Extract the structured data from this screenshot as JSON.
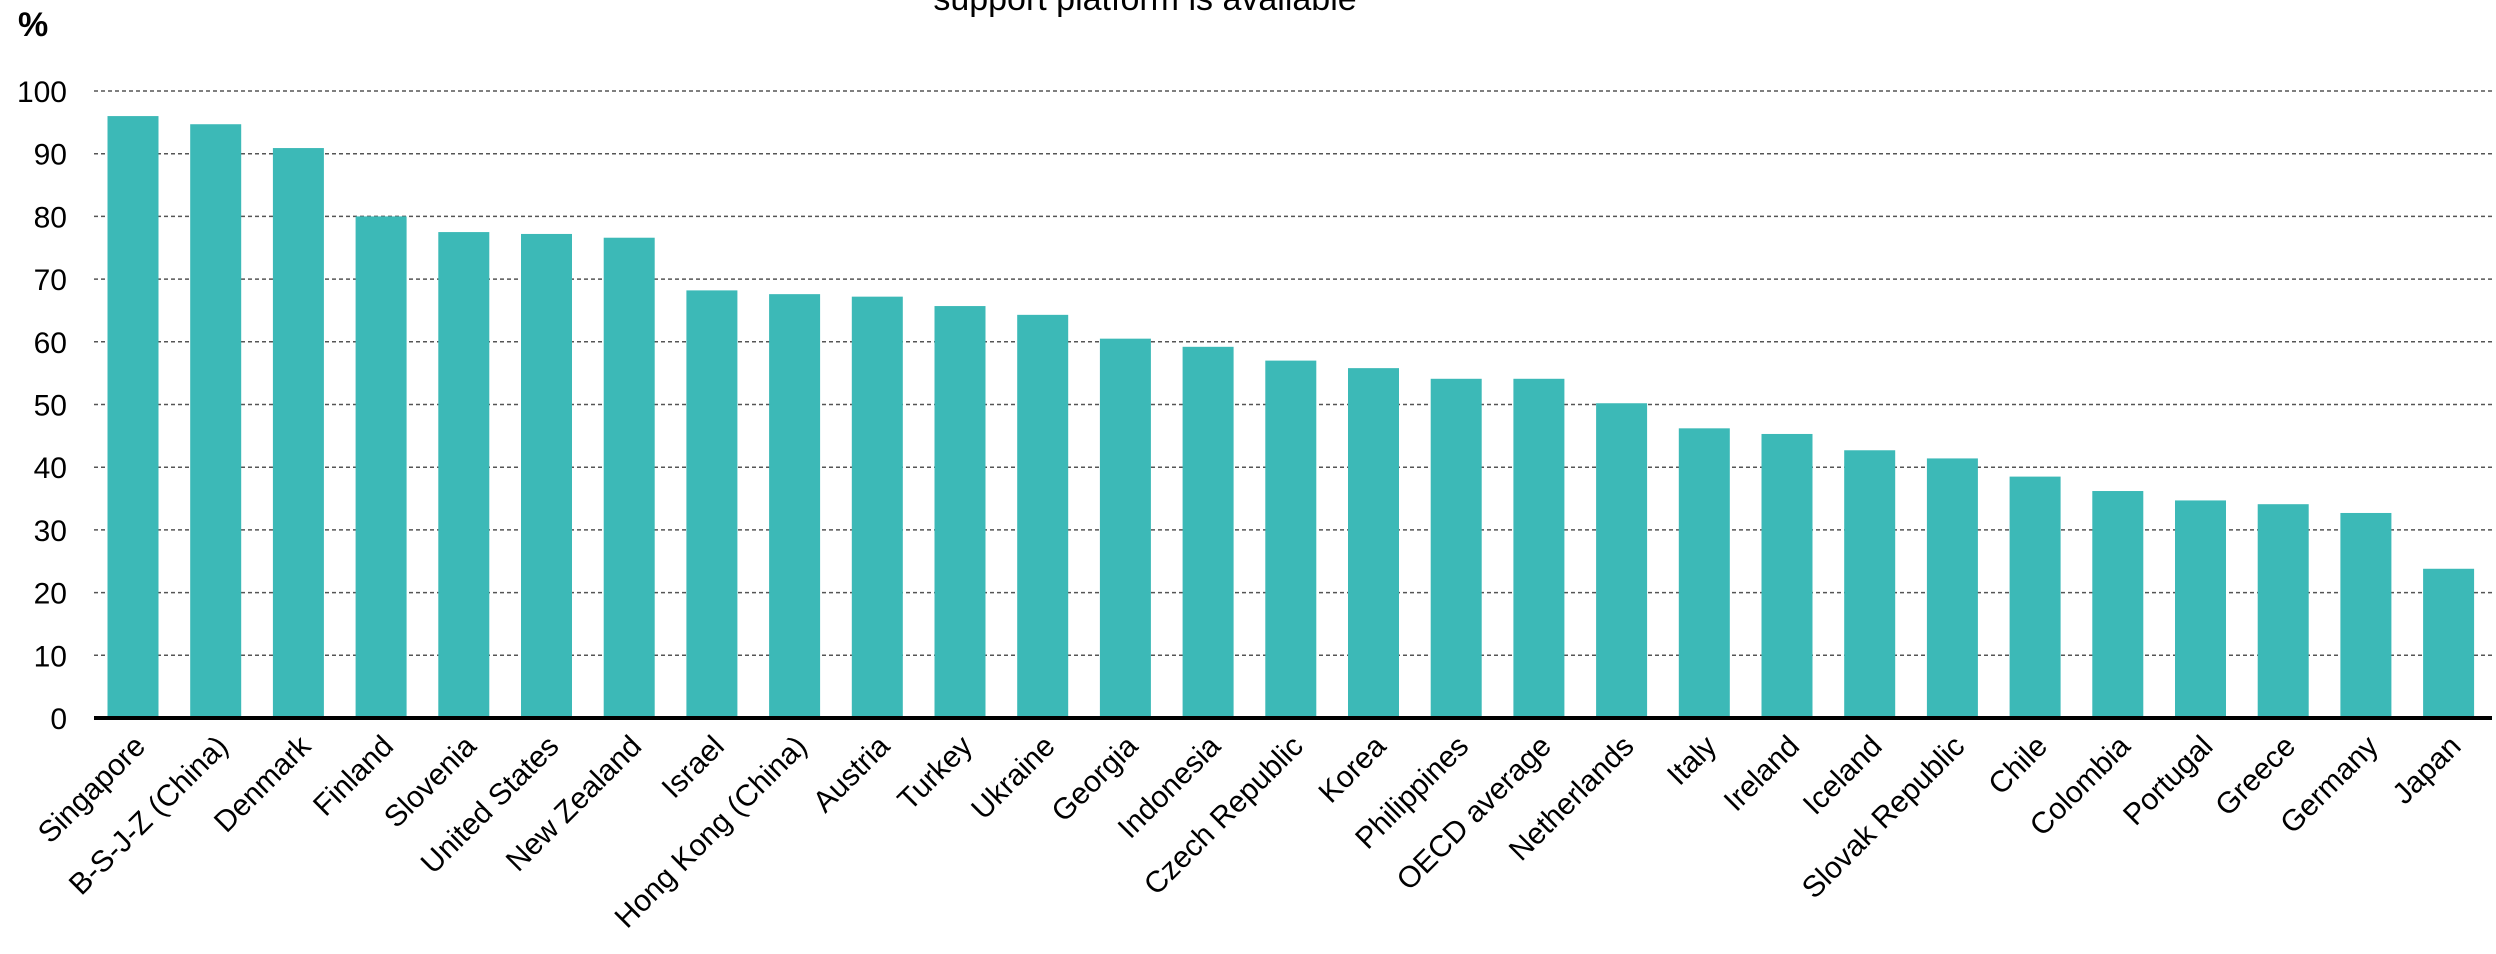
{
  "chart_data": {
    "type": "bar",
    "title": "support  platform is available",
    "ylabel": "%",
    "xlabel": "",
    "ylim": [
      0,
      100
    ],
    "yticks": [
      0,
      10,
      20,
      30,
      40,
      50,
      60,
      70,
      80,
      90,
      100
    ],
    "grid": true,
    "bar_color": "#3CB9B7",
    "categories": [
      "Singapore",
      "B-S-J-Z (China)",
      "Denmark",
      "Finland",
      "Slovenia",
      "United States",
      "New Zealand",
      "Israel",
      "Hong Kong (China)",
      "Austria",
      "Turkey",
      "Ukraine",
      "Georgia",
      "Indonesia",
      "Czech Republic",
      "Korea",
      "Philippines",
      "OECD average",
      "Netherlands",
      "Italy",
      "Ireland",
      "Iceland",
      "Slovak Republic",
      "Chile",
      "Colombia",
      "Portugal",
      "Greece",
      "Germany",
      "Japan"
    ],
    "values": [
      96,
      94.7,
      90.9,
      80,
      77.5,
      77.2,
      76.6,
      68.2,
      67.6,
      67.2,
      65.7,
      64.3,
      60.5,
      59.2,
      57,
      55.8,
      54.1,
      54.1,
      50.2,
      46.2,
      45.3,
      42.7,
      41.4,
      38.5,
      36.2,
      34.7,
      34.1,
      32.7,
      23.8
    ]
  }
}
